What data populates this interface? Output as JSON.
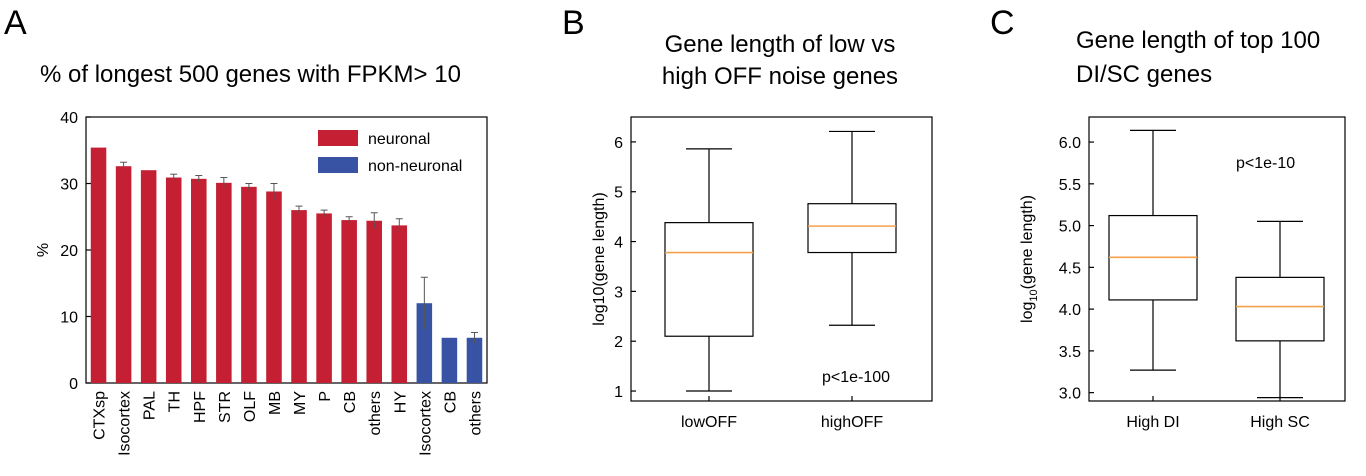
{
  "panels": {
    "a": "A",
    "b": "B",
    "c": "C"
  },
  "chart_data": [
    {
      "type": "bar",
      "title": "% of longest 500 genes with FPKM> 10",
      "ylabel": "%",
      "xlabel": "",
      "ylim": [
        0,
        40
      ],
      "yticks": [
        0,
        10,
        20,
        30,
        40
      ],
      "categories": [
        "CTXsp",
        "Isocortex",
        "PAL",
        "TH",
        "HPF",
        "STR",
        "OLF",
        "MB",
        "MY",
        "P",
        "CB",
        "others",
        "HY",
        "Isocortex",
        "CB",
        "others"
      ],
      "values": [
        35.4,
        32.6,
        32.0,
        30.9,
        30.7,
        30.1,
        29.5,
        28.8,
        26.0,
        25.5,
        24.5,
        24.4,
        23.7,
        12.0,
        6.8,
        6.8
      ],
      "errors": [
        0,
        0.6,
        0,
        0.5,
        0.5,
        0.8,
        0.5,
        1.2,
        0.6,
        0.5,
        0.5,
        1.2,
        1.0,
        3.9,
        0,
        0.8
      ],
      "groups": [
        "neuronal",
        "neuronal",
        "neuronal",
        "neuronal",
        "neuronal",
        "neuronal",
        "neuronal",
        "neuronal",
        "neuronal",
        "neuronal",
        "neuronal",
        "neuronal",
        "neuronal",
        "non-neuronal",
        "non-neuronal",
        "non-neuronal"
      ],
      "legend": [
        {
          "name": "neuronal",
          "color": "#c41f32"
        },
        {
          "name": "non-neuronal",
          "color": "#3953a4"
        }
      ],
      "legend_position": "top-right"
    },
    {
      "type": "box",
      "title": [
        "Gene length of low vs",
        "high OFF noise genes"
      ],
      "ylabel": "log10(gene length)",
      "xlabel": "",
      "ylim": [
        0.8,
        6.5
      ],
      "yticks": [
        1,
        2,
        3,
        4,
        5,
        6
      ],
      "categories": [
        "lowOFF",
        "highOFF"
      ],
      "boxes": [
        {
          "whisker_low": 1.0,
          "q1": 2.1,
          "median": 3.78,
          "q3": 4.38,
          "whisker_high": 5.86
        },
        {
          "whisker_low": 2.32,
          "q1": 3.78,
          "median": 4.31,
          "q3": 4.76,
          "whisker_high": 6.21
        }
      ],
      "annotation": "p<1e-100",
      "median_color": "#f5a04a"
    },
    {
      "type": "box",
      "title": [
        "Gene length of top 100",
        "DI/SC genes"
      ],
      "ylabel_main": "log",
      "ylabel_sub": "10",
      "ylabel_rest": "(gene length)",
      "xlabel": "",
      "ylim": [
        2.9,
        6.3
      ],
      "yticks": [
        "3.0",
        "3.5",
        "4.0",
        "4.5",
        "5.0",
        "5.5",
        "6.0"
      ],
      "categories": [
        "High DI",
        "High SC"
      ],
      "boxes": [
        {
          "whisker_low": 3.27,
          "q1": 4.11,
          "median": 4.62,
          "q3": 5.12,
          "whisker_high": 6.14
        },
        {
          "whisker_low": 2.94,
          "q1": 3.62,
          "median": 4.03,
          "q3": 4.38,
          "whisker_high": 5.05
        }
      ],
      "annotation": "p<1e-10",
      "median_color": "#f5a04a"
    }
  ]
}
